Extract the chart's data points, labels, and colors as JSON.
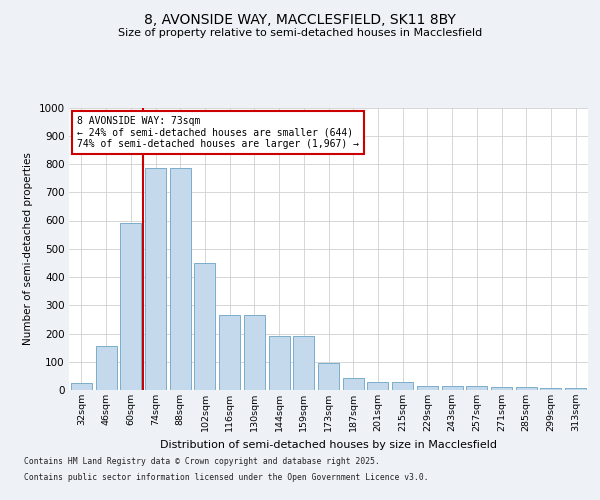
{
  "title_line1": "8, AVONSIDE WAY, MACCLESFIELD, SK11 8BY",
  "title_line2": "Size of property relative to semi-detached houses in Macclesfield",
  "xlabel": "Distribution of semi-detached houses by size in Macclesfield",
  "ylabel": "Number of semi-detached properties",
  "categories": [
    "32sqm",
    "46sqm",
    "60sqm",
    "74sqm",
    "88sqm",
    "102sqm",
    "116sqm",
    "130sqm",
    "144sqm",
    "159sqm",
    "173sqm",
    "187sqm",
    "201sqm",
    "215sqm",
    "229sqm",
    "243sqm",
    "257sqm",
    "271sqm",
    "285sqm",
    "299sqm",
    "313sqm"
  ],
  "values": [
    25,
    155,
    590,
    785,
    785,
    450,
    265,
    265,
    190,
    190,
    97,
    42,
    28,
    28,
    13,
    13,
    13,
    10,
    10,
    7,
    8
  ],
  "bar_color": "#c5d9ec",
  "bar_edge_color": "#7aaecb",
  "vline_color": "#cc0000",
  "vline_position": 2.5,
  "annotation_title": "8 AVONSIDE WAY: 73sqm",
  "annotation_line2": "← 24% of semi-detached houses are smaller (644)",
  "annotation_line3": "74% of semi-detached houses are larger (1,967) →",
  "annotation_box_color": "#ffffff",
  "annotation_box_edge_color": "#cc0000",
  "ylim": [
    0,
    1000
  ],
  "yticks": [
    0,
    100,
    200,
    300,
    400,
    500,
    600,
    700,
    800,
    900,
    1000
  ],
  "footnote_line1": "Contains HM Land Registry data © Crown copyright and database right 2025.",
  "footnote_line2": "Contains public sector information licensed under the Open Government Licence v3.0.",
  "bg_color": "#eef2f7",
  "plot_bg_color": "#ffffff",
  "grid_color": "#d0d0d0"
}
